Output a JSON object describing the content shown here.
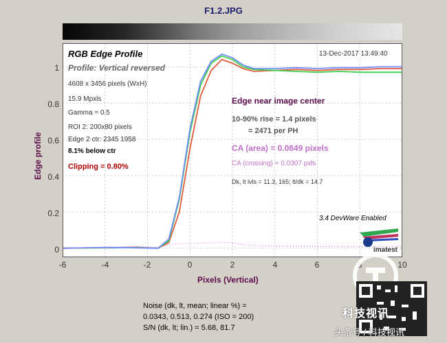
{
  "window": {
    "title": "F1.2.JPG"
  },
  "panel": {
    "heading": "RGB Edge Profile",
    "profile": "Profile: Vertical reversed",
    "info": [
      "4608 x 3456 pixels (WxH)",
      "15.9 Mpxls",
      "Gamma = 0.5",
      "ROI 2: 200x80 pixels",
      "Edge 2 ctr: 2345  1958"
    ],
    "below": "8.1% below ctr",
    "clipping": "Clipping =   0.80%",
    "date": "13-Dec-2017 13:49:40",
    "edge_title": "Edge near image center",
    "rise_1": "10-90% rise = 1.4 pixels",
    "rise_2": "= 2471 per PH",
    "ca_area": "CA (area) = 0.0849 pixels",
    "ca_crossing": "CA (crossing) = 0.0307 pxls",
    "dk": "Dk, lt lvls = 11.3, 165;  lt/dk = 14.7",
    "devware": "3.4  DevWare Enabled",
    "imatest": "imatest"
  },
  "noise": {
    "line1": "Noise (dk, lt, mean; linear %) =",
    "line2": "0.0343,  0.513,  0.274  (ISO =  200)",
    "line3": "S/N (dk, lt; lin.) = 5.68,  81.7"
  },
  "watermark": {
    "text": "科技视讯",
    "source": "头条号 / 科技视讯"
  },
  "colors": {
    "red": "#e05a3a",
    "green": "#3ecf4a",
    "blue": "#6e8bff",
    "magenta": "#d070d8",
    "label": "#5a0a4a"
  },
  "chart_data": {
    "type": "line",
    "title": "",
    "xlabel": "Pixels (Vertical)",
    "ylabel": "Edge profile",
    "xlim": [
      -6,
      10
    ],
    "ylim": [
      -0.05,
      1.13
    ],
    "xticks": [
      "-6",
      "-4",
      "-2",
      "0",
      "2",
      "4",
      "6",
      "8",
      "10"
    ],
    "yticks": [
      "0",
      "0.2",
      "0.4",
      "0.6",
      "0.8",
      "1"
    ],
    "grid": true,
    "x": [
      -6,
      -4,
      -2.5,
      -1.5,
      -1,
      -0.5,
      0,
      0.5,
      1,
      1.5,
      2,
      2.5,
      3,
      4,
      5,
      6,
      7,
      8,
      9,
      10
    ],
    "series": [
      {
        "color": "red",
        "values": [
          0,
          0.003,
          0.005,
          0,
          0.03,
          0.2,
          0.55,
          0.84,
          0.98,
          1.04,
          1.02,
          0.99,
          0.975,
          0.98,
          0.985,
          0.98,
          0.985,
          0.985,
          0.99,
          0.99
        ]
      },
      {
        "color": "green",
        "values": [
          0,
          0.002,
          0.003,
          0,
          0.04,
          0.27,
          0.64,
          0.9,
          1.02,
          1.06,
          1.04,
          1.0,
          0.985,
          0.98,
          0.975,
          0.97,
          0.975,
          0.97,
          0.97,
          0.97
        ]
      },
      {
        "color": "blue",
        "values": [
          0,
          0.004,
          0.002,
          0,
          0.05,
          0.28,
          0.66,
          0.92,
          1.03,
          1.07,
          1.05,
          1.01,
          0.99,
          0.99,
          0.995,
          0.99,
          0.995,
          0.995,
          1.0,
          1.0
        ]
      },
      {
        "color": "magenta",
        "style": "dotted",
        "values": [
          0,
          0.005,
          0.01,
          0.005,
          0.02,
          0.025,
          0.025,
          0.028,
          0.03,
          0.033,
          0.03,
          0.02,
          0.015,
          0.012,
          0.01,
          0.01,
          0.008,
          0.008,
          0.008,
          0.008
        ]
      }
    ]
  }
}
